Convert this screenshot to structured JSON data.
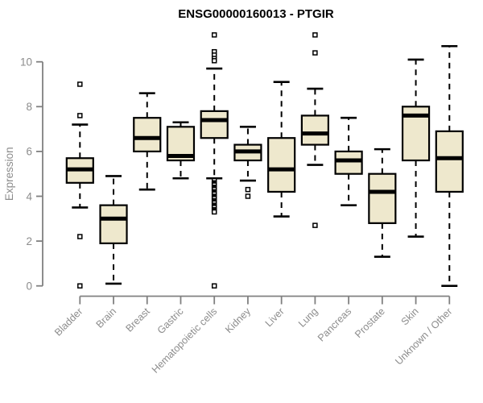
{
  "chart_data": {
    "type": "boxplot",
    "title": "ENSG00000160013 - PTGIR",
    "ylabel": "Expression",
    "xlabel": "",
    "ylim": [
      0,
      10
    ],
    "yticks": [
      0,
      2,
      4,
      6,
      8,
      10
    ],
    "grid": false,
    "legend": false,
    "categories": [
      "Bladder",
      "Brain",
      "Breast",
      "Gastric",
      "Hematopoietic cells",
      "Kidney",
      "Liver",
      "Lung",
      "Pancreas",
      "Prostate",
      "Skin",
      "Unknown / Other"
    ],
    "series": [
      {
        "name": "Bladder",
        "low": 3.5,
        "q1": 4.6,
        "median": 5.2,
        "q3": 5.7,
        "high": 7.2,
        "outliers": [
          9.0,
          7.6,
          2.2,
          0.0
        ]
      },
      {
        "name": "Brain",
        "low": 0.1,
        "q1": 1.9,
        "median": 3.0,
        "q3": 3.6,
        "high": 4.9,
        "outliers": []
      },
      {
        "name": "Breast",
        "low": 4.3,
        "q1": 6.0,
        "median": 6.6,
        "q3": 7.5,
        "high": 8.6,
        "outliers": []
      },
      {
        "name": "Gastric",
        "low": 4.8,
        "q1": 5.6,
        "median": 5.8,
        "q3": 7.1,
        "high": 7.3,
        "outliers": []
      },
      {
        "name": "Hematopoietic cells",
        "low": 4.8,
        "q1": 6.6,
        "median": 7.4,
        "q3": 7.8,
        "high": 9.7,
        "outliers": [
          11.2,
          10.45,
          10.3,
          10.15,
          10.05,
          4.7,
          4.6,
          4.55,
          4.5,
          4.4,
          4.35,
          4.3,
          4.2,
          4.15,
          4.1,
          4.0,
          3.95,
          3.9,
          3.8,
          3.75,
          3.7,
          3.6,
          3.55,
          3.5,
          3.4,
          3.35,
          3.3,
          0.0
        ]
      },
      {
        "name": "Kidney",
        "low": 4.7,
        "q1": 5.6,
        "median": 6.0,
        "q3": 6.3,
        "high": 7.1,
        "outliers": [
          4.3,
          4.0
        ]
      },
      {
        "name": "Liver",
        "low": 3.1,
        "q1": 4.2,
        "median": 5.2,
        "q3": 6.6,
        "high": 9.1,
        "outliers": []
      },
      {
        "name": "Lung",
        "low": 5.4,
        "q1": 6.3,
        "median": 6.8,
        "q3": 7.6,
        "high": 8.8,
        "outliers": [
          11.2,
          10.4,
          2.7
        ]
      },
      {
        "name": "Pancreas",
        "low": 3.6,
        "q1": 5.0,
        "median": 5.6,
        "q3": 6.0,
        "high": 7.5,
        "outliers": []
      },
      {
        "name": "Prostate",
        "low": 1.3,
        "q1": 2.8,
        "median": 4.2,
        "q3": 5.0,
        "high": 6.1,
        "outliers": []
      },
      {
        "name": "Skin",
        "low": 2.2,
        "q1": 5.6,
        "median": 7.6,
        "q3": 8.0,
        "high": 10.1,
        "outliers": []
      },
      {
        "name": "Unknown / Other",
        "low": 0.0,
        "q1": 4.2,
        "median": 5.7,
        "q3": 6.9,
        "high": 10.7,
        "outliers": []
      }
    ],
    "colors": {
      "box_fill": "#EEE8CD",
      "box_stroke": "#000000",
      "median": "#000000",
      "axis": "#808080",
      "tick_label": "#8C8C8C",
      "title": "#000000",
      "background": "#FFFFFF"
    }
  }
}
